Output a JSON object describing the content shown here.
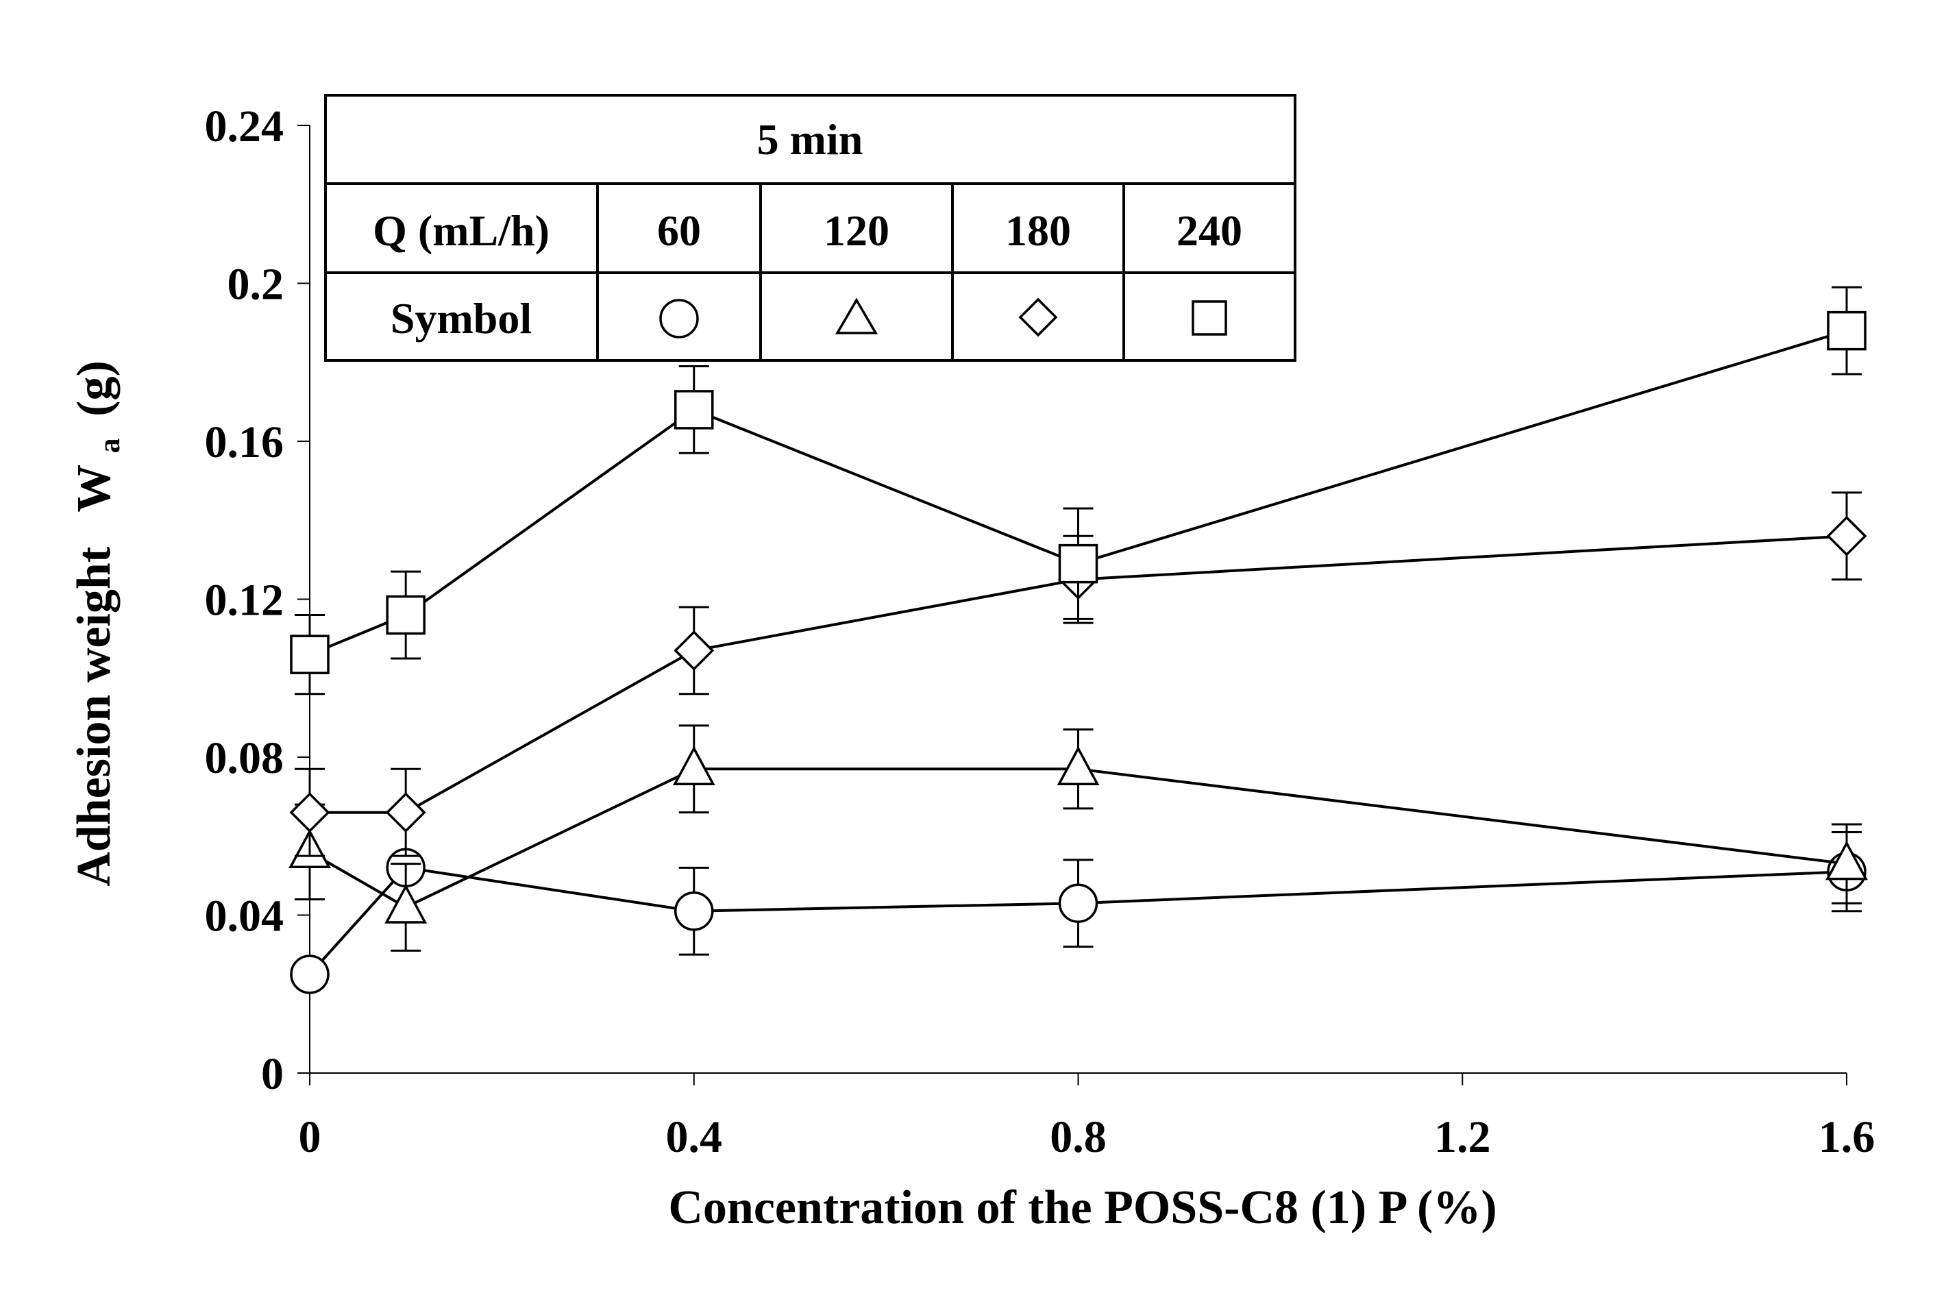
{
  "chart_data": {
    "type": "line",
    "xlabel": "Concentration of the POSS-C8 (1) P (%)",
    "ylabel_main": "Adhesion weight",
    "ylabel_symbol": "W",
    "ylabel_subscript": "a",
    "ylabel_unit": "(g)",
    "x_ticks": [
      "0",
      "0.4",
      "0.8",
      "1.2",
      "1.6"
    ],
    "y_ticks": [
      "0",
      "0.04",
      "0.08",
      "0.12",
      "0.16",
      "0.2",
      "0.24"
    ],
    "xlim": [
      0,
      1.6
    ],
    "ylim": [
      0,
      0.24
    ],
    "x": [
      0,
      0.1,
      0.4,
      0.8,
      1.6
    ],
    "series": [
      {
        "name": "60",
        "symbol": "circle",
        "values": [
          0.025,
          0.052,
          0.041,
          0.043,
          0.051
        ],
        "error": [
          0,
          0,
          0.011,
          0.011,
          0.01
        ]
      },
      {
        "name": "120",
        "symbol": "triangle",
        "values": [
          0.056,
          0.042,
          0.077,
          0.077,
          0.053
        ],
        "error": [
          0.012,
          0.011,
          0.011,
          0.01,
          0.01
        ]
      },
      {
        "name": "180",
        "symbol": "diamond",
        "values": [
          0.066,
          0.066,
          0.107,
          0.125,
          0.136
        ],
        "error": [
          0.011,
          0.011,
          0.011,
          0.011,
          0.011
        ]
      },
      {
        "name": "240",
        "symbol": "square",
        "values": [
          0.106,
          0.116,
          0.168,
          0.129,
          0.188
        ],
        "error": [
          0.01,
          0.011,
          0.011,
          0.014,
          0.011
        ]
      }
    ],
    "legend": {
      "title": "5 min",
      "q_label": "Q (mL/h)",
      "symbol_label": "Symbol",
      "placement": "top-left"
    }
  }
}
